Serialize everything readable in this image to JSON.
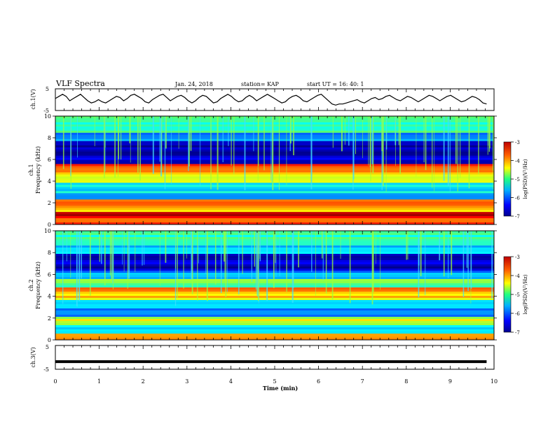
{
  "header": {
    "title": "VLF Spectra",
    "date": "Jan. 24, 2018",
    "station": "station= KAP",
    "start": "start  UT =   16: 40: 1"
  },
  "chart_data": [
    {
      "type": "line",
      "panel": "ch1-waveform",
      "ylabel": "ch.1(V)",
      "ylim": [
        -5,
        5
      ],
      "yticks": [
        "5",
        "-5"
      ],
      "x_range_min": [
        0,
        9.83
      ],
      "series": [
        {
          "values": [
            0.5,
            1.5,
            2.5,
            1.5,
            -0.5,
            0.5,
            1.5,
            2.5,
            1.0,
            -0.5,
            -1.5,
            -1.0,
            0.0,
            -1.0,
            -1.5,
            -0.5,
            0.5,
            1.5,
            1.0,
            -0.5,
            0.5,
            2.0,
            2.5,
            1.5,
            0.5,
            -1.0,
            -1.5,
            0.0,
            1.0,
            2.0,
            2.5,
            1.0,
            -0.5,
            0.5,
            1.5,
            2.0,
            1.0,
            -0.5,
            -1.5,
            -0.5,
            1.0,
            2.0,
            1.5,
            0.0,
            -1.5,
            -1.0,
            0.5,
            1.5,
            2.5,
            1.5,
            0.0,
            -1.0,
            -0.5,
            1.0,
            2.0,
            1.0,
            -0.5,
            0.5,
            1.5,
            2.5,
            1.5,
            0.5,
            -0.5,
            -1.5,
            -1.0,
            0.5,
            1.5,
            2.0,
            1.0,
            -0.5,
            -1.0,
            0.0,
            1.0,
            2.0,
            2.5,
            1.0,
            -0.5,
            -2.0,
            -2.5,
            -2.0,
            -2.0,
            -1.5,
            -1.0,
            -0.5,
            0.0,
            -1.0,
            -1.5,
            -0.5,
            0.5,
            1.0,
            0.0,
            0.5,
            1.5,
            2.0,
            1.0,
            0.0,
            -0.5,
            0.5,
            1.5,
            1.0,
            0.0,
            -1.0,
            0.0,
            1.0,
            2.0,
            1.5,
            0.5,
            -0.5,
            0.5,
            1.5,
            2.0,
            1.0,
            0.0,
            -1.0,
            -0.5,
            0.5,
            1.5,
            1.0,
            0.0,
            -1.5,
            -2.0
          ]
        }
      ]
    },
    {
      "type": "heatmap",
      "panel": "ch1-spectrogram",
      "ylabel": "ch.1\nFrequency (kHz)",
      "ylim": [
        0,
        10
      ],
      "yticks": [
        "0",
        "2",
        "4",
        "6",
        "8",
        "10"
      ],
      "colorbar": {
        "label": "log(PSD)(V²/Hz)",
        "range": [
          -7,
          -3
        ],
        "ticks": [
          "-3",
          "-4",
          "-5",
          "-6",
          "-7"
        ]
      },
      "bands_khz": [
        {
          "f": 0.1,
          "level": -3.8
        },
        {
          "f": 0.9,
          "level": -3.3
        },
        {
          "f": 1.4,
          "level": -4.3
        },
        {
          "f": 2.1,
          "level": -4.0
        },
        {
          "f": 2.7,
          "level": -5.8
        },
        {
          "f": 3.2,
          "level": -5.6
        },
        {
          "f": 4.3,
          "level": -4.6
        },
        {
          "f": 5.0,
          "level": -4.2
        },
        {
          "f": 5.3,
          "level": -3.6
        },
        {
          "f": 5.8,
          "level": -6.6
        },
        {
          "f": 6.6,
          "level": -6.8
        },
        {
          "f": 7.3,
          "level": -6.9
        },
        {
          "f": 8.0,
          "level": -6.0
        },
        {
          "f": 9.0,
          "level": -5.2
        },
        {
          "f": 9.8,
          "level": -5.0
        }
      ]
    },
    {
      "type": "heatmap",
      "panel": "ch2-spectrogram",
      "ylabel": "ch.2\nFrequency (kHz)",
      "ylim": [
        0,
        10
      ],
      "yticks": [
        "0",
        "2",
        "4",
        "6",
        "8",
        "10"
      ],
      "colorbar": {
        "label": "log(PSD)(V²/Hz)",
        "range": [
          -7,
          -3
        ],
        "ticks": [
          "-3",
          "-4",
          "-5",
          "-6",
          "-7"
        ]
      },
      "bands_khz": [
        {
          "f": 0.3,
          "level": -4.2
        },
        {
          "f": 0.9,
          "level": -5.6
        },
        {
          "f": 1.8,
          "level": -4.6
        },
        {
          "f": 2.6,
          "level": -6.2
        },
        {
          "f": 3.3,
          "level": -5.9
        },
        {
          "f": 4.0,
          "level": -4.4
        },
        {
          "f": 4.5,
          "level": -4.0
        },
        {
          "f": 5.2,
          "level": -5.0
        },
        {
          "f": 6.0,
          "level": -6.0
        },
        {
          "f": 6.8,
          "level": -6.8
        },
        {
          "f": 7.4,
          "level": -6.7
        },
        {
          "f": 8.2,
          "level": -5.8
        },
        {
          "f": 9.0,
          "level": -5.3
        },
        {
          "f": 9.8,
          "level": -5.2
        }
      ]
    },
    {
      "type": "line",
      "panel": "ch3-waveform",
      "ylabel": "ch.3(V)",
      "ylim": [
        -5,
        5
      ],
      "yticks": [
        "5",
        "-5"
      ],
      "x_range_min": [
        0,
        9.83
      ],
      "series": [
        {
          "values": [
            -1.8,
            -1.8
          ]
        }
      ]
    }
  ],
  "x_axis": {
    "label": "Time (min)",
    "range": [
      0,
      10
    ],
    "ticks": [
      "0",
      "1",
      "2",
      "3",
      "4",
      "5",
      "6",
      "7",
      "8",
      "9",
      "10"
    ]
  },
  "colors": {
    "colormap": [
      "#00008f",
      "#0000ff",
      "#00a0ff",
      "#00ffff",
      "#60ff60",
      "#ffff00",
      "#ff8000",
      "#ff0000",
      "#a00000"
    ]
  }
}
